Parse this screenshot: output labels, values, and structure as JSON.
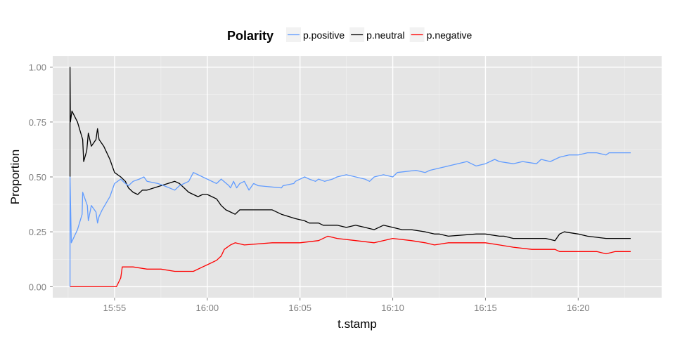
{
  "chart_data": {
    "type": "line",
    "xlabel": "t.stamp",
    "ylabel": "Proportion",
    "x_tick_labels": [
      "15:55",
      "16:00",
      "16:05",
      "16:10",
      "16:15",
      "16:20"
    ],
    "x_ticks": [
      "15:55",
      "16:00",
      "16:05",
      "16:10",
      "16:15",
      "16:20"
    ],
    "xlim": [
      "15:51:40",
      "16:24:30"
    ],
    "y_tick_labels": [
      "0.00",
      "0.25",
      "0.50",
      "0.75",
      "1.00"
    ],
    "y_ticks": [
      0,
      0.25,
      0.5,
      0.75,
      1.0
    ],
    "ylim": [
      -0.05,
      1.05
    ],
    "grid": true,
    "legend": {
      "title": "Polarity",
      "position": "top"
    },
    "series": [
      {
        "name": "p.positive",
        "color": "#619cff",
        "points": [
          [
            "15:52:36",
            0.0
          ],
          [
            "15:52:36",
            0.5
          ],
          [
            "15:52:40",
            0.2
          ],
          [
            "15:53:00",
            0.26
          ],
          [
            "15:53:15",
            0.33
          ],
          [
            "15:53:17",
            0.43
          ],
          [
            "15:53:32",
            0.37
          ],
          [
            "15:53:35",
            0.3
          ],
          [
            "15:53:45",
            0.37
          ],
          [
            "15:54:00",
            0.34
          ],
          [
            "15:54:05",
            0.29
          ],
          [
            "15:54:10",
            0.32
          ],
          [
            "15:54:20",
            0.35
          ],
          [
            "15:54:45",
            0.41
          ],
          [
            "15:55:00",
            0.47
          ],
          [
            "15:55:20",
            0.49
          ],
          [
            "15:55:35",
            0.47
          ],
          [
            "15:55:45",
            0.46
          ],
          [
            "15:56:00",
            0.48
          ],
          [
            "15:56:20",
            0.49
          ],
          [
            "15:56:35",
            0.5
          ],
          [
            "15:56:45",
            0.48
          ],
          [
            "15:57:20",
            0.47
          ],
          [
            "15:57:40",
            0.46
          ],
          [
            "15:58:15",
            0.44
          ],
          [
            "15:58:30",
            0.46
          ],
          [
            "15:59:00",
            0.48
          ],
          [
            "15:59:15",
            0.52
          ],
          [
            "15:59:45",
            0.5
          ],
          [
            "16:00:30",
            0.47
          ],
          [
            "16:00:45",
            0.49
          ],
          [
            "16:01:10",
            0.46
          ],
          [
            "16:01:15",
            0.45
          ],
          [
            "16:01:25",
            0.48
          ],
          [
            "16:01:35",
            0.45
          ],
          [
            "16:01:45",
            0.47
          ],
          [
            "16:02:00",
            0.48
          ],
          [
            "16:02:15",
            0.44
          ],
          [
            "16:02:30",
            0.47
          ],
          [
            "16:02:45",
            0.46
          ],
          [
            "16:04:00",
            0.45
          ],
          [
            "16:04:05",
            0.46
          ],
          [
            "16:04:40",
            0.47
          ],
          [
            "16:04:45",
            0.48
          ],
          [
            "16:05:15",
            0.5
          ],
          [
            "16:05:30",
            0.49
          ],
          [
            "16:05:50",
            0.48
          ],
          [
            "16:06:00",
            0.49
          ],
          [
            "16:06:20",
            0.48
          ],
          [
            "16:06:45",
            0.49
          ],
          [
            "16:07:00",
            0.5
          ],
          [
            "16:07:30",
            0.51
          ],
          [
            "16:08:30",
            0.49
          ],
          [
            "16:08:45",
            0.48
          ],
          [
            "16:09:00",
            0.5
          ],
          [
            "16:09:30",
            0.51
          ],
          [
            "16:10:00",
            0.5
          ],
          [
            "16:10:15",
            0.52
          ],
          [
            "16:11:15",
            0.53
          ],
          [
            "16:11:45",
            0.52
          ],
          [
            "16:12:00",
            0.53
          ],
          [
            "16:12:30",
            0.54
          ],
          [
            "16:13:00",
            0.55
          ],
          [
            "16:13:30",
            0.56
          ],
          [
            "16:14:00",
            0.57
          ],
          [
            "16:14:30",
            0.55
          ],
          [
            "16:15:00",
            0.56
          ],
          [
            "16:15:30",
            0.58
          ],
          [
            "16:15:45",
            0.57
          ],
          [
            "16:16:30",
            0.56
          ],
          [
            "16:17:00",
            0.57
          ],
          [
            "16:17:45",
            0.56
          ],
          [
            "16:18:00",
            0.58
          ],
          [
            "16:18:30",
            0.57
          ],
          [
            "16:19:00",
            0.59
          ],
          [
            "16:19:30",
            0.6
          ],
          [
            "16:20:00",
            0.6
          ],
          [
            "16:20:30",
            0.61
          ],
          [
            "16:21:00",
            0.61
          ],
          [
            "16:21:30",
            0.6
          ],
          [
            "16:21:40",
            0.61
          ],
          [
            "16:22:30",
            0.61
          ],
          [
            "16:22:50",
            0.61
          ]
        ]
      },
      {
        "name": "p.neutral",
        "color": "#000000",
        "points": [
          [
            "15:52:36",
            0.5
          ],
          [
            "15:52:36",
            1.0
          ],
          [
            "15:52:37",
            0.75
          ],
          [
            "15:52:42",
            0.8
          ],
          [
            "15:53:00",
            0.75
          ],
          [
            "15:53:17",
            0.67
          ],
          [
            "15:53:20",
            0.57
          ],
          [
            "15:53:30",
            0.62
          ],
          [
            "15:53:35",
            0.7
          ],
          [
            "15:53:45",
            0.64
          ],
          [
            "15:54:00",
            0.67
          ],
          [
            "15:54:05",
            0.72
          ],
          [
            "15:54:10",
            0.67
          ],
          [
            "15:54:25",
            0.64
          ],
          [
            "15:54:45",
            0.58
          ],
          [
            "15:55:00",
            0.52
          ],
          [
            "15:55:20",
            0.5
          ],
          [
            "15:55:35",
            0.48
          ],
          [
            "15:55:45",
            0.45
          ],
          [
            "15:56:00",
            0.43
          ],
          [
            "15:56:15",
            0.42
          ],
          [
            "15:56:30",
            0.44
          ],
          [
            "15:56:45",
            0.44
          ],
          [
            "15:57:30",
            0.46
          ],
          [
            "15:58:15",
            0.48
          ],
          [
            "15:58:30",
            0.47
          ],
          [
            "15:59:00",
            0.43
          ],
          [
            "15:59:30",
            0.41
          ],
          [
            "15:59:45",
            0.42
          ],
          [
            "16:00:00",
            0.42
          ],
          [
            "16:00:15",
            0.41
          ],
          [
            "16:00:30",
            0.4
          ],
          [
            "16:00:45",
            0.37
          ],
          [
            "16:01:00",
            0.35
          ],
          [
            "16:01:15",
            0.34
          ],
          [
            "16:01:30",
            0.33
          ],
          [
            "16:01:45",
            0.35
          ],
          [
            "16:02:00",
            0.35
          ],
          [
            "16:03:30",
            0.35
          ],
          [
            "16:04:00",
            0.33
          ],
          [
            "16:04:45",
            0.31
          ],
          [
            "16:05:15",
            0.3
          ],
          [
            "16:05:30",
            0.29
          ],
          [
            "16:06:00",
            0.29
          ],
          [
            "16:06:15",
            0.28
          ],
          [
            "16:06:30",
            0.28
          ],
          [
            "16:07:00",
            0.28
          ],
          [
            "16:07:30",
            0.27
          ],
          [
            "16:08:00",
            0.28
          ],
          [
            "16:08:30",
            0.27
          ],
          [
            "16:09:00",
            0.26
          ],
          [
            "16:09:30",
            0.28
          ],
          [
            "16:10:00",
            0.27
          ],
          [
            "16:10:30",
            0.26
          ],
          [
            "16:11:00",
            0.26
          ],
          [
            "16:11:45",
            0.25
          ],
          [
            "16:12:15",
            0.24
          ],
          [
            "16:12:30",
            0.24
          ],
          [
            "16:13:00",
            0.23
          ],
          [
            "16:14:30",
            0.24
          ],
          [
            "16:15:00",
            0.24
          ],
          [
            "16:15:45",
            0.23
          ],
          [
            "16:16:00",
            0.23
          ],
          [
            "16:16:30",
            0.22
          ],
          [
            "16:17:00",
            0.22
          ],
          [
            "16:17:45",
            0.22
          ],
          [
            "16:18:15",
            0.22
          ],
          [
            "16:18:45",
            0.21
          ],
          [
            "16:19:00",
            0.24
          ],
          [
            "16:19:15",
            0.25
          ],
          [
            "16:20:00",
            0.24
          ],
          [
            "16:20:30",
            0.23
          ],
          [
            "16:21:30",
            0.22
          ],
          [
            "16:22:50",
            0.22
          ]
        ]
      },
      {
        "name": "p.negative",
        "color": "#ff0000",
        "points": [
          [
            "15:52:36",
            0.0
          ],
          [
            "15:55:06",
            0.0
          ],
          [
            "15:55:20",
            0.04
          ],
          [
            "15:55:25",
            0.09
          ],
          [
            "15:56:00",
            0.09
          ],
          [
            "15:56:45",
            0.08
          ],
          [
            "15:57:30",
            0.08
          ],
          [
            "15:58:15",
            0.07
          ],
          [
            "15:59:00",
            0.07
          ],
          [
            "15:59:15",
            0.07
          ],
          [
            "15:59:45",
            0.09
          ],
          [
            "16:00:00",
            0.1
          ],
          [
            "16:00:30",
            0.12
          ],
          [
            "16:00:45",
            0.14
          ],
          [
            "16:00:55",
            0.17
          ],
          [
            "16:01:15",
            0.19
          ],
          [
            "16:01:30",
            0.2
          ],
          [
            "16:02:00",
            0.19
          ],
          [
            "16:03:30",
            0.2
          ],
          [
            "16:04:00",
            0.2
          ],
          [
            "16:04:45",
            0.2
          ],
          [
            "16:05:00",
            0.2
          ],
          [
            "16:06:00",
            0.21
          ],
          [
            "16:06:30",
            0.23
          ],
          [
            "16:07:00",
            0.22
          ],
          [
            "16:08:00",
            0.21
          ],
          [
            "16:09:00",
            0.2
          ],
          [
            "16:10:00",
            0.22
          ],
          [
            "16:11:00",
            0.21
          ],
          [
            "16:11:45",
            0.2
          ],
          [
            "16:12:15",
            0.19
          ],
          [
            "16:13:00",
            0.2
          ],
          [
            "16:13:30",
            0.2
          ],
          [
            "16:15:00",
            0.2
          ],
          [
            "16:15:45",
            0.19
          ],
          [
            "16:16:30",
            0.18
          ],
          [
            "16:17:30",
            0.17
          ],
          [
            "16:18:00",
            0.17
          ],
          [
            "16:18:45",
            0.17
          ],
          [
            "16:19:00",
            0.16
          ],
          [
            "16:20:00",
            0.16
          ],
          [
            "16:21:00",
            0.16
          ],
          [
            "16:21:30",
            0.15
          ],
          [
            "16:22:00",
            0.16
          ],
          [
            "16:22:50",
            0.16
          ]
        ]
      }
    ]
  }
}
